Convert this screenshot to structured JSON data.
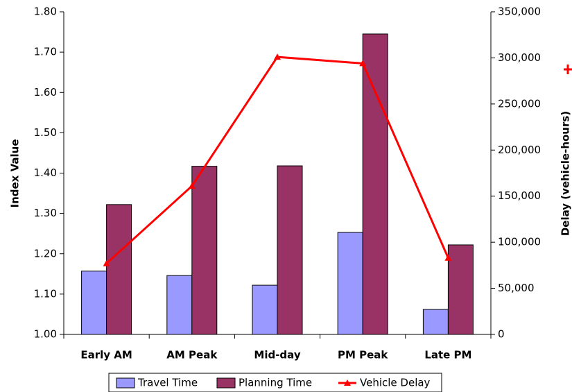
{
  "chart_data": {
    "type": "bar-line",
    "categories": [
      "Early AM",
      "AM Peak",
      "Mid-day",
      "PM Peak",
      "Late PM"
    ],
    "series": [
      {
        "name": "Travel Time",
        "type": "bar",
        "color": "#9999ff",
        "values": [
          1.157,
          1.146,
          1.122,
          1.253,
          1.062
        ]
      },
      {
        "name": "Planning Time",
        "type": "bar",
        "color": "#993366",
        "values": [
          1.322,
          1.417,
          1.418,
          1.745,
          1.222
        ]
      },
      {
        "name": "Vehicle Delay",
        "type": "line",
        "axis": "y2",
        "color": "#ff0000",
        "values": [
          77000,
          161000,
          301000,
          294000,
          83000
        ]
      }
    ],
    "y_label": "Index Value",
    "y2_label": "Delay (vehicle-hours)",
    "ylim": [
      1,
      1.8
    ],
    "yticks": [
      {
        "value": 1,
        "label": "1.00"
      },
      {
        "value": 1.1,
        "label": "1.10"
      },
      {
        "value": 1.2,
        "label": "1.20"
      },
      {
        "value": 1.3,
        "label": "1.30"
      },
      {
        "value": 1.4,
        "label": "1.40"
      },
      {
        "value": 1.5,
        "label": "1.50"
      },
      {
        "value": 1.6,
        "label": "1.60"
      },
      {
        "value": 1.7,
        "label": "1.70"
      },
      {
        "value": 1.8,
        "label": "1.80"
      }
    ],
    "y2lim": [
      0,
      350000
    ],
    "y2ticks": [
      0,
      {
        "value": 50000,
        "label": "50,000"
      },
      {
        "value": 100000,
        "label": "100,000"
      },
      {
        "value": 150000,
        "label": "150,000"
      },
      {
        "value": 200000,
        "label": "200,000"
      },
      {
        "value": 250000,
        "label": "250,000"
      },
      {
        "value": 300000,
        "label": "300,000"
      },
      {
        "value": 350000,
        "label": "350,000"
      }
    ],
    "grid": false,
    "legend": "bottom"
  }
}
